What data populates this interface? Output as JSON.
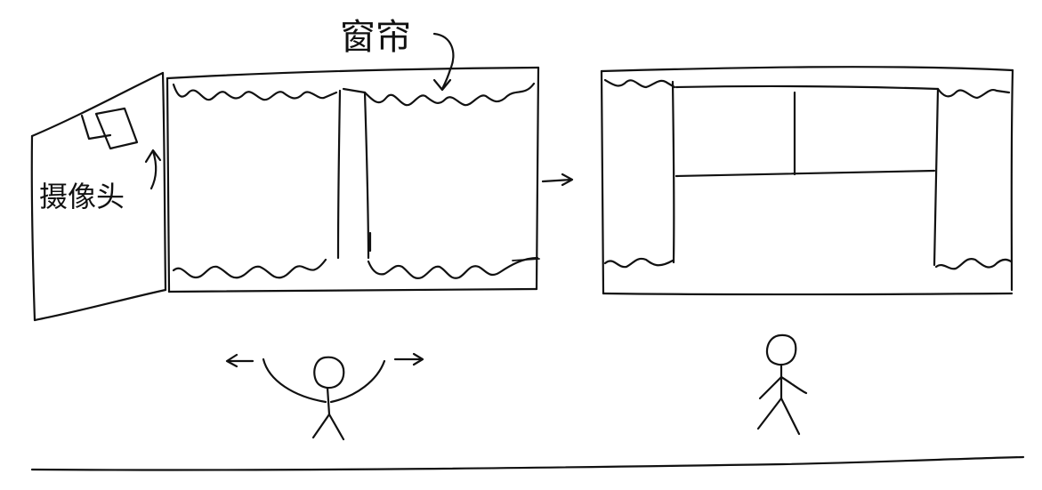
{
  "labels": {
    "curtain": "窗帘",
    "camera": "摄像头"
  }
}
